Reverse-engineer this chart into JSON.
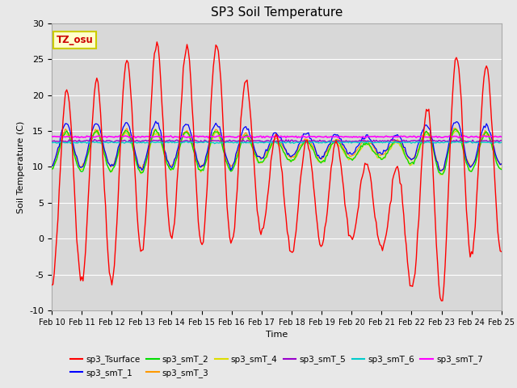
{
  "title": "SP3 Soil Temperature",
  "ylabel": "Soil Temperature (C)",
  "xlabel": "Time",
  "tz_label": "TZ_osu",
  "ylim": [
    -10,
    30
  ],
  "yticks": [
    -10,
    -5,
    0,
    5,
    10,
    15,
    20,
    25,
    30
  ],
  "x_days": [
    10,
    11,
    12,
    13,
    14,
    15,
    16,
    17,
    18,
    19,
    20,
    21,
    22,
    23,
    24,
    25
  ],
  "series_colors": {
    "sp3_Tsurface": "#ff0000",
    "sp3_smT_1": "#0000ff",
    "sp3_smT_2": "#00dd00",
    "sp3_smT_3": "#ff9900",
    "sp3_smT_4": "#dddd00",
    "sp3_smT_5": "#9900cc",
    "sp3_smT_6": "#00cccc",
    "sp3_smT_7": "#ff00ff"
  },
  "fig_bg": "#e8e8e8",
  "plot_bg": "#d8d8d8",
  "tz_facecolor": "#ffffcc",
  "tz_edgecolor": "#cccc00",
  "tz_textcolor": "#cc0000"
}
